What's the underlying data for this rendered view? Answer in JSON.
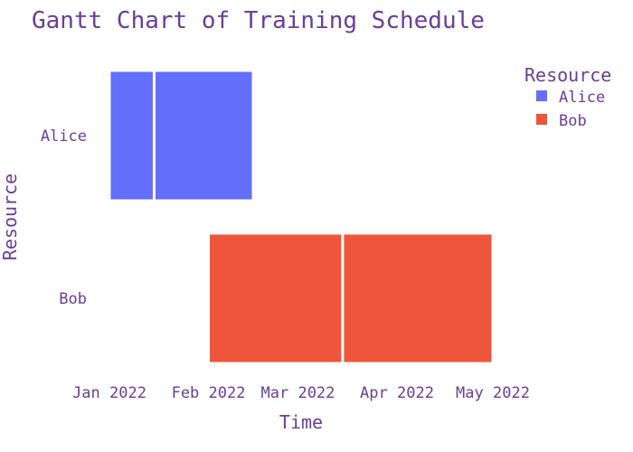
{
  "chart_data": {
    "type": "gantt",
    "title": "Gantt Chart of Training Schedule",
    "xlabel": "Time",
    "ylabel": "Resource",
    "x_ticks": [
      "Jan 2022",
      "Feb 2022",
      "Mar 2022",
      "Apr 2022",
      "May 2022"
    ],
    "x_range": [
      "2022-01-01",
      "2022-05-01"
    ],
    "categories": [
      "Alice",
      "Bob"
    ],
    "legend": {
      "title": "Resource",
      "placement": "top-right"
    },
    "series": [
      {
        "name": "Alice",
        "color": "#636efa",
        "tasks": [
          {
            "start": "2022-01-01",
            "end": "2022-01-15"
          },
          {
            "start": "2022-01-15",
            "end": "2022-02-15"
          }
        ]
      },
      {
        "name": "Bob",
        "color": "#ef553b",
        "tasks": [
          {
            "start": "2022-02-01",
            "end": "2022-03-15"
          },
          {
            "start": "2022-03-15",
            "end": "2022-05-01"
          }
        ]
      }
    ]
  }
}
